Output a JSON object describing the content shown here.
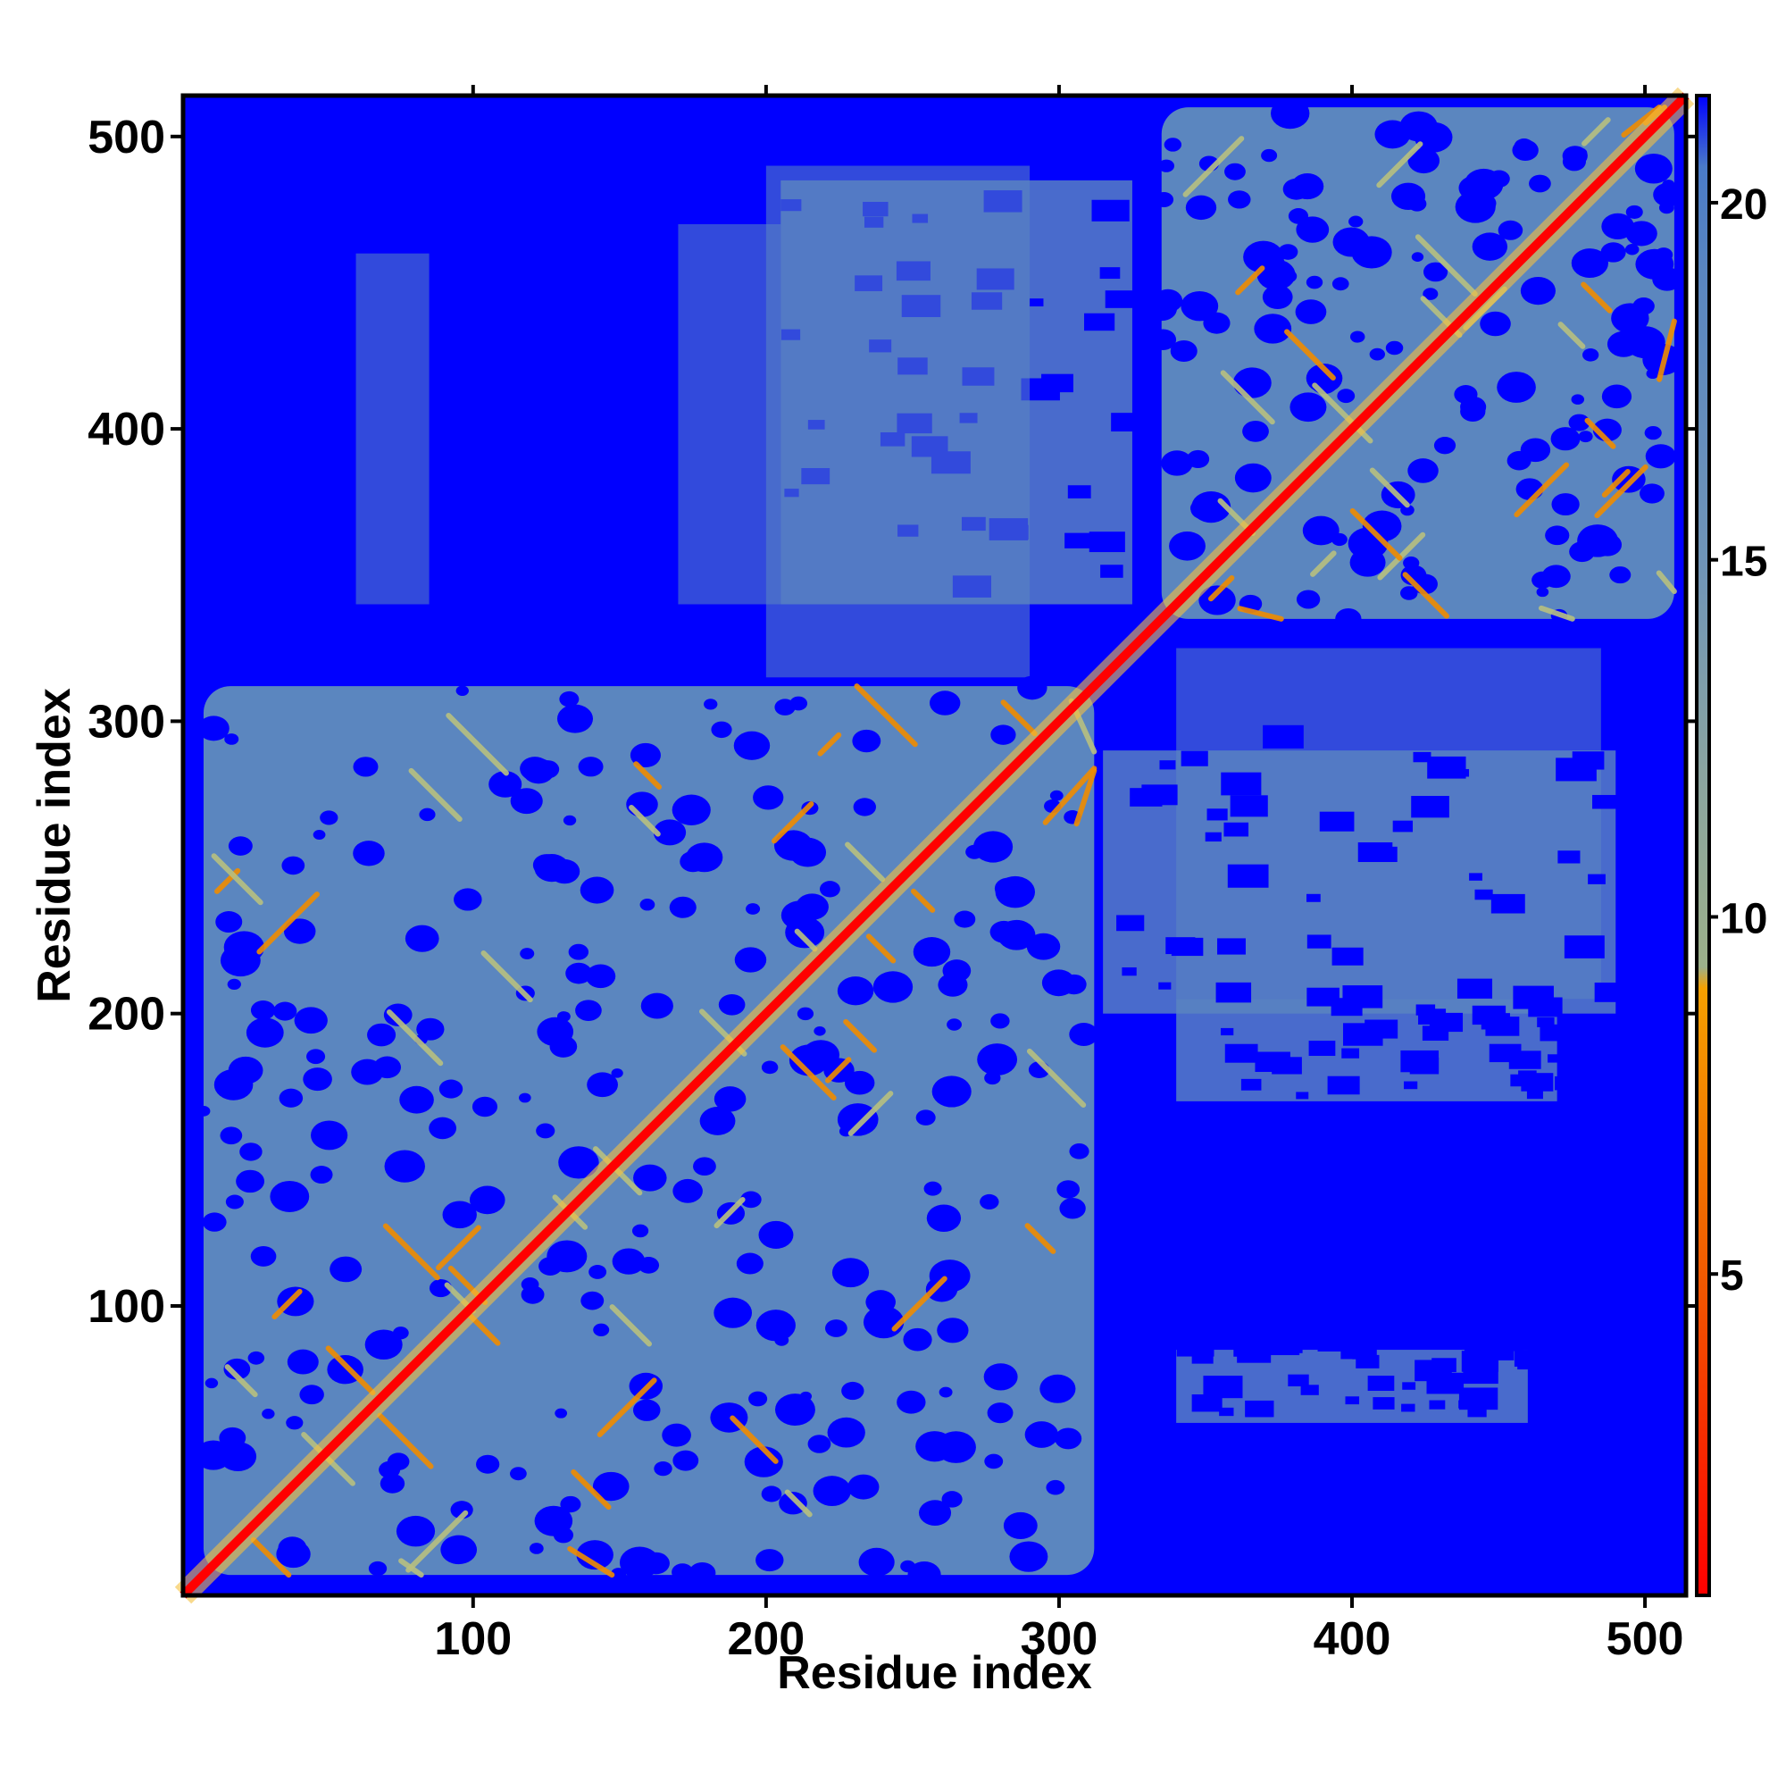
{
  "chart_data": {
    "type": "heatmap",
    "title": "",
    "xlabel": "Residue index",
    "ylabel": "Residue index",
    "xlim": [
      1,
      514
    ],
    "ylim": [
      1,
      514
    ],
    "x_ticks": [
      100,
      200,
      300,
      400,
      500
    ],
    "y_ticks": [
      100,
      200,
      300,
      400,
      500
    ],
    "colorbar": {
      "ticks": [
        5,
        10,
        15,
        20
      ],
      "range": [
        0.5,
        21.5
      ],
      "stops": [
        {
          "value": 0.5,
          "color": "#ff0000"
        },
        {
          "value": 5,
          "color": "#f05a00"
        },
        {
          "value": 9,
          "color": "#f5a000"
        },
        {
          "value": 9.3,
          "color": "#9cb08a"
        },
        {
          "value": 12,
          "color": "#8aa4a0"
        },
        {
          "value": 15,
          "color": "#6f94b8"
        },
        {
          "value": 19,
          "color": "#5a86c0"
        },
        {
          "value": 20.5,
          "color": "#4a7bc8"
        },
        {
          "value": 21.5,
          "color": "#0000ff"
        }
      ]
    },
    "background_color": "#0000ff",
    "contact_color": "#5b86bf",
    "diagonal_color": "#ff0000",
    "domains": [
      {
        "start": 8,
        "end": 312
      },
      {
        "start": 335,
        "end": 510
      }
    ],
    "inter_domain_blocks": [
      {
        "x": [
          205,
          325
        ],
        "y": [
          340,
          485
        ]
      },
      {
        "x": [
          315,
          490
        ],
        "y": [
          200,
          290
        ]
      },
      {
        "x": [
          340,
          470
        ],
        "y": [
          170,
          205
        ]
      },
      {
        "x": [
          340,
          460
        ],
        "y": [
          60,
          85
        ]
      }
    ]
  }
}
